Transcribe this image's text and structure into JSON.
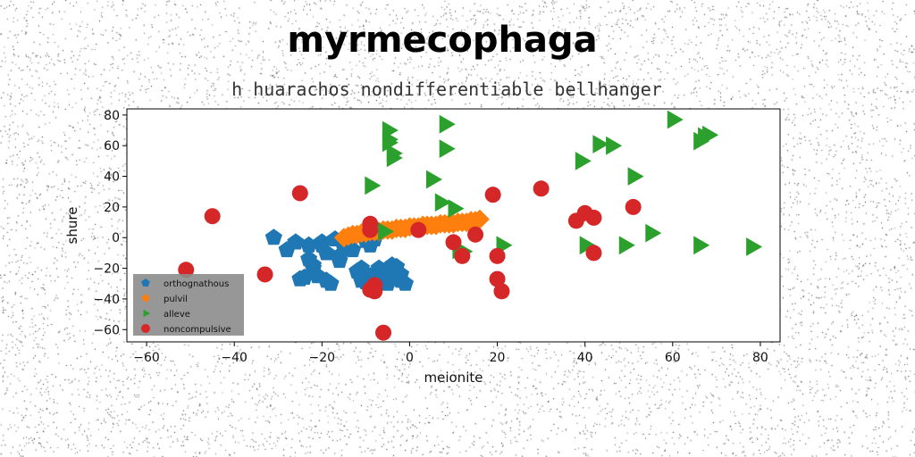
{
  "chart_data": {
    "type": "scatter",
    "title": "myrmecophaga",
    "subtitle": "h huarachos nondifferentiable bellhanger",
    "xlabel": "meionite",
    "ylabel": "shure",
    "xlim": [
      -64.5,
      84.5
    ],
    "ylim": [
      -68,
      84
    ],
    "xticks": [
      -60,
      -40,
      -20,
      0,
      20,
      40,
      60,
      80
    ],
    "yticks": [
      -60,
      -40,
      -20,
      0,
      20,
      40,
      60,
      80
    ],
    "grid": false,
    "legend_position": "lower-left",
    "series": [
      {
        "name": "orthognathous",
        "marker": "pentagon",
        "color": "#1f77b4",
        "x": [
          -31,
          -28,
          -26,
          -24,
          -23,
          -22,
          -21,
          -20,
          -19,
          -18,
          -17,
          -16,
          -15,
          -14,
          -12,
          -11,
          -10,
          -9,
          -8,
          -7,
          -6,
          -5,
          -4,
          -3,
          -2,
          -1,
          -25,
          -22,
          -19,
          -13,
          -10,
          -7,
          -4,
          -2,
          -23,
          -20,
          -8,
          -11,
          -16,
          -5,
          -3,
          -9
        ],
        "y": [
          0,
          -8,
          -3,
          -26,
          -14,
          -18,
          -25,
          -5,
          -10,
          -30,
          -1,
          -12,
          -6,
          0,
          -22,
          -28,
          -2,
          -25,
          -30,
          -20,
          -26,
          -22,
          -27,
          -19,
          -24,
          -30,
          -27,
          -20,
          -28,
          -8,
          -29,
          -24,
          -18,
          -28,
          -5,
          -3,
          -1,
          -20,
          -15,
          -30,
          -24,
          -5
        ]
      },
      {
        "name": "pulvil",
        "marker": "diamond",
        "color": "#ff7f0e",
        "x": [
          -15,
          -14,
          -13,
          -12,
          -11,
          -10,
          -9,
          -8,
          -7,
          -6,
          -5,
          -4,
          -3,
          -2,
          -1,
          0,
          1,
          2,
          3,
          4,
          5,
          6,
          7,
          8,
          9,
          10,
          11,
          12,
          13,
          14,
          15,
          16
        ],
        "y": [
          0,
          1,
          2,
          2,
          3,
          3,
          4,
          4,
          4,
          5,
          5,
          5,
          6,
          6,
          6,
          7,
          7,
          7,
          8,
          8,
          8,
          8,
          9,
          9,
          9,
          9,
          10,
          10,
          10,
          11,
          11,
          12
        ]
      },
      {
        "name": "alleve",
        "marker": "triangle-right",
        "color": "#2ca02c",
        "x": [
          -5,
          -5,
          -4,
          -4,
          -5,
          -9,
          5,
          8,
          -6,
          10,
          7,
          8,
          21,
          11,
          39,
          43,
          46,
          51,
          60,
          66,
          67,
          68,
          49,
          40,
          55,
          66,
          78,
          12
        ],
        "y": [
          70,
          64,
          55,
          52,
          62,
          34,
          38,
          58,
          4,
          19,
          23,
          74,
          -5,
          -8,
          50,
          61,
          60,
          40,
          77,
          63,
          66,
          67,
          -5,
          -5,
          3,
          -5,
          -6,
          -9
        ]
      },
      {
        "name": "noncompulsive",
        "marker": "circle",
        "color": "#d62728",
        "x": [
          -45,
          -51,
          -33,
          -25,
          -9,
          -9,
          -8,
          -8,
          -6,
          2,
          10,
          12,
          15,
          19,
          20,
          20,
          21,
          30,
          38,
          40,
          42,
          42,
          51,
          -9
        ],
        "y": [
          14,
          -21,
          -24,
          29,
          9,
          5,
          -31,
          -35,
          -62,
          5,
          -3,
          -12,
          2,
          28,
          -12,
          -27,
          -35,
          32,
          11,
          16,
          13,
          -10,
          20,
          -34
        ]
      }
    ]
  }
}
